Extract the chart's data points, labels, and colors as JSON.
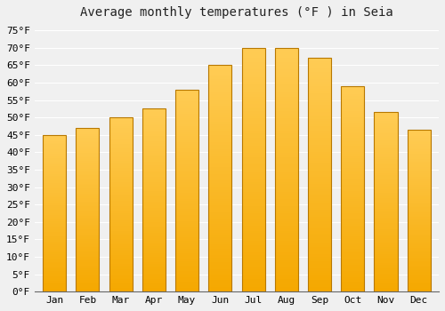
{
  "title": "Average monthly temperatures (°F ) in Seia",
  "months": [
    "Jan",
    "Feb",
    "Mar",
    "Apr",
    "May",
    "Jun",
    "Jul",
    "Aug",
    "Sep",
    "Oct",
    "Nov",
    "Dec"
  ],
  "values": [
    45,
    47,
    50,
    52.5,
    58,
    65,
    70,
    70,
    67,
    59,
    51.5,
    46.5
  ],
  "ylim": [
    0,
    77
  ],
  "yticks": [
    0,
    5,
    10,
    15,
    20,
    25,
    30,
    35,
    40,
    45,
    50,
    55,
    60,
    65,
    70,
    75
  ],
  "background_color": "#f0f0f0",
  "plot_bg_color": "#f0f0f0",
  "grid_color": "#ffffff",
  "title_fontsize": 10,
  "tick_fontsize": 8,
  "bar_color_bottom": "#F5A800",
  "bar_color_top": "#FFCC55",
  "bar_edge_color": "#B87800",
  "bar_width": 0.7
}
